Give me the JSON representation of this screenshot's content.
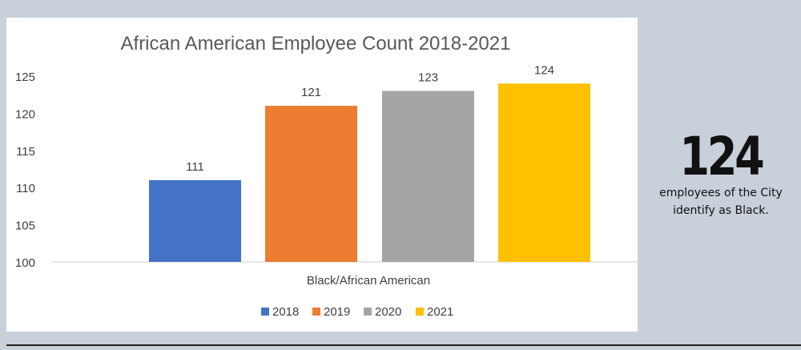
{
  "chart_data": {
    "type": "bar",
    "title": "African American Employee Count 2018-2021",
    "xlabel": "Black/African American",
    "ylabel": "",
    "ylim": [
      100,
      125
    ],
    "yticks": [
      100,
      105,
      110,
      115,
      120,
      125
    ],
    "categories": [
      "Black/African American"
    ],
    "series": [
      {
        "name": "2018",
        "values": [
          111
        ],
        "color": "#4472c4"
      },
      {
        "name": "2019",
        "values": [
          121
        ],
        "color": "#ed7d31"
      },
      {
        "name": "2020",
        "values": [
          123
        ],
        "color": "#a5a5a5"
      },
      {
        "name": "2021",
        "values": [
          124
        ],
        "color": "#ffc000"
      }
    ],
    "legend": "bottom",
    "grid": false
  },
  "stat": {
    "number": "124",
    "caption_line1": "employees of the City",
    "caption_line2": "identify as Black."
  }
}
